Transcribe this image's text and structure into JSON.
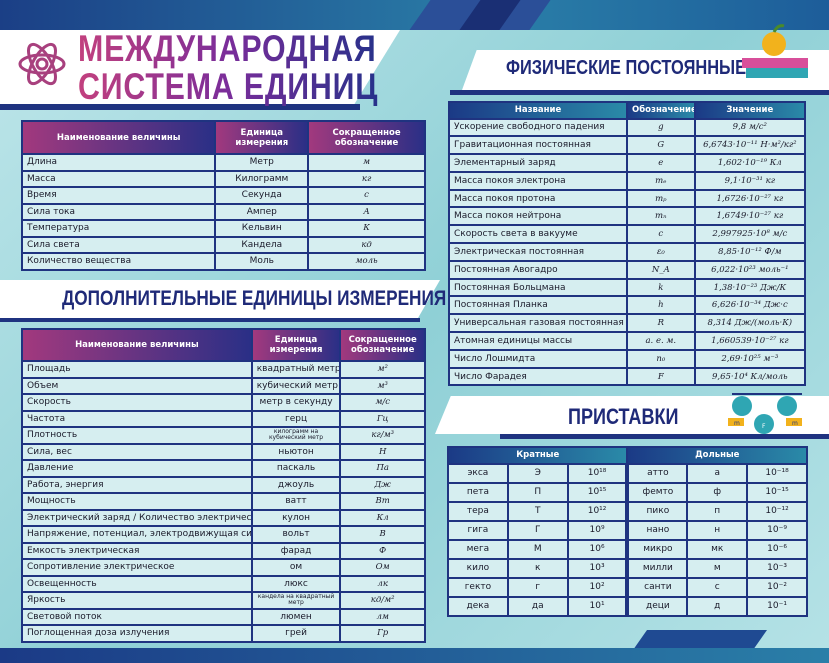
{
  "title": {
    "line1": "МЕЖДУНАРОДНАЯ",
    "line2": "СИСТЕМА ЕДИНИЦ"
  },
  "colors": {
    "dark_blue": "#1f3380",
    "pink": "#c2407e",
    "teal": "#8fd0d6"
  },
  "base_units": {
    "headers": [
      "Наименование величины",
      "Единица измерения",
      "Сокращенное обозначение"
    ],
    "rows": [
      [
        "Длина",
        "Метр",
        "м"
      ],
      [
        "Масса",
        "Килограмм",
        "кг"
      ],
      [
        "Время",
        "Секунда",
        "с"
      ],
      [
        "Сила тока",
        "Ампер",
        "А"
      ],
      [
        "Температура",
        "Кельвин",
        "К"
      ],
      [
        "Сила света",
        "Кандела",
        "кд"
      ],
      [
        "Количество вещества",
        "Моль",
        "моль"
      ]
    ]
  },
  "additional_units": {
    "title": "ДОПОЛНИТЕЛЬНЫЕ ЕДИНИЦЫ ИЗМЕРЕНИЯ",
    "headers": [
      "Наименование величины",
      "Единица измерения",
      "Сокращенное обозначение"
    ],
    "rows": [
      [
        "Площадь",
        "квадратный метр",
        "м²"
      ],
      [
        "Объем",
        "кубический метр",
        "м³"
      ],
      [
        "Скорость",
        "метр в секунду",
        "м/с"
      ],
      [
        "Частота",
        "герц",
        "Гц"
      ],
      [
        "Плотность",
        "килограмм на кубический метр",
        "кг/м³"
      ],
      [
        "Сила, вес",
        "ньютон",
        "Н"
      ],
      [
        "Давление",
        "паскаль",
        "Па"
      ],
      [
        "Работа, энергия",
        "джоуль",
        "Дж"
      ],
      [
        "Мощность",
        "ватт",
        "Вт"
      ],
      [
        "Электрический заряд / Количество электричества",
        "кулон",
        "Кл"
      ],
      [
        "Напряжение, потенциал, электродвижущая сила",
        "вольт",
        "В"
      ],
      [
        "Емкость электрическая",
        "фарад",
        "Ф"
      ],
      [
        "Сопротивление электрическое",
        "ом",
        "Ом"
      ],
      [
        "Освещенность",
        "люкс",
        "лк"
      ],
      [
        "Яркость",
        "кандела на квадратный метр",
        "кд/м²"
      ],
      [
        "Световой поток",
        "люмен",
        "лм"
      ],
      [
        "Поглощенная доза излучения",
        "грей",
        "Гр"
      ]
    ]
  },
  "constants": {
    "title": "ФИЗИЧЕСКИЕ ПОСТОЯННЫЕ",
    "headers": [
      "Название",
      "Обозначение",
      "Значение"
    ],
    "rows": [
      [
        "Ускорение свободного падения",
        "g",
        "9,8 м/с²"
      ],
      [
        "Гравитационная постоянная",
        "G",
        "6,6743·10⁻¹¹ Н·м²/кг²"
      ],
      [
        "Элементарный заряд",
        "e",
        "1,602·10⁻¹⁹ Кл"
      ],
      [
        "Масса покоя электрона",
        "mₑ",
        "9,1·10⁻³¹ кг"
      ],
      [
        "Масса покоя протона",
        "mₚ",
        "1,6726·10⁻²⁷ кг"
      ],
      [
        "Масса покоя нейтрона",
        "mₙ",
        "1,6749·10⁻²⁷ кг"
      ],
      [
        "Скорость света в вакууме",
        "c",
        "2,997925·10⁸ м/с"
      ],
      [
        "Электрическая постоянная",
        "ε₀",
        "8,85·10⁻¹² Ф/м"
      ],
      [
        "Постоянная Авогадро",
        "N_A",
        "6,022·10²³ моль⁻¹"
      ],
      [
        "Постоянная Больцмана",
        "k",
        "1,38·10⁻²³ Дж/К"
      ],
      [
        "Постоянная Планка",
        "h",
        "6,626·10⁻³⁴ Дж·с"
      ],
      [
        "Универсальная газовая постоянная",
        "R",
        "8,314 Дж/(моль·К)"
      ],
      [
        "Атомная единицы массы",
        "а. е. м.",
        "1,660539·10⁻²⁷ кг"
      ],
      [
        "Число Лошмидта",
        "n₀",
        "2,69·10²⁵ м⁻³"
      ],
      [
        "Число Фарадея",
        "F",
        "9,65·10⁴ Кл/моль"
      ]
    ]
  },
  "prefixes": {
    "title": "ПРИСТАВКИ",
    "multiple_label": "Кратные",
    "submultiple_label": "Дольные",
    "pulley_labels": {
      "mass": "m",
      "force": "F"
    },
    "rows": [
      [
        "экса",
        "Э",
        "10¹⁸",
        "атто",
        "а",
        "10⁻¹⁸"
      ],
      [
        "пета",
        "П",
        "10¹⁵",
        "фемто",
        "ф",
        "10⁻¹⁵"
      ],
      [
        "тера",
        "Т",
        "10¹²",
        "пико",
        "п",
        "10⁻¹²"
      ],
      [
        "гига",
        "Г",
        "10⁹",
        "нано",
        "н",
        "10⁻⁹"
      ],
      [
        "мега",
        "М",
        "10⁶",
        "микро",
        "мк",
        "10⁻⁶"
      ],
      [
        "кило",
        "к",
        "10³",
        "милли",
        "м",
        "10⁻³"
      ],
      [
        "гекто",
        "г",
        "10²",
        "санти",
        "с",
        "10⁻²"
      ],
      [
        "дека",
        "да",
        "10¹",
        "деци",
        "д",
        "10⁻¹"
      ]
    ]
  }
}
